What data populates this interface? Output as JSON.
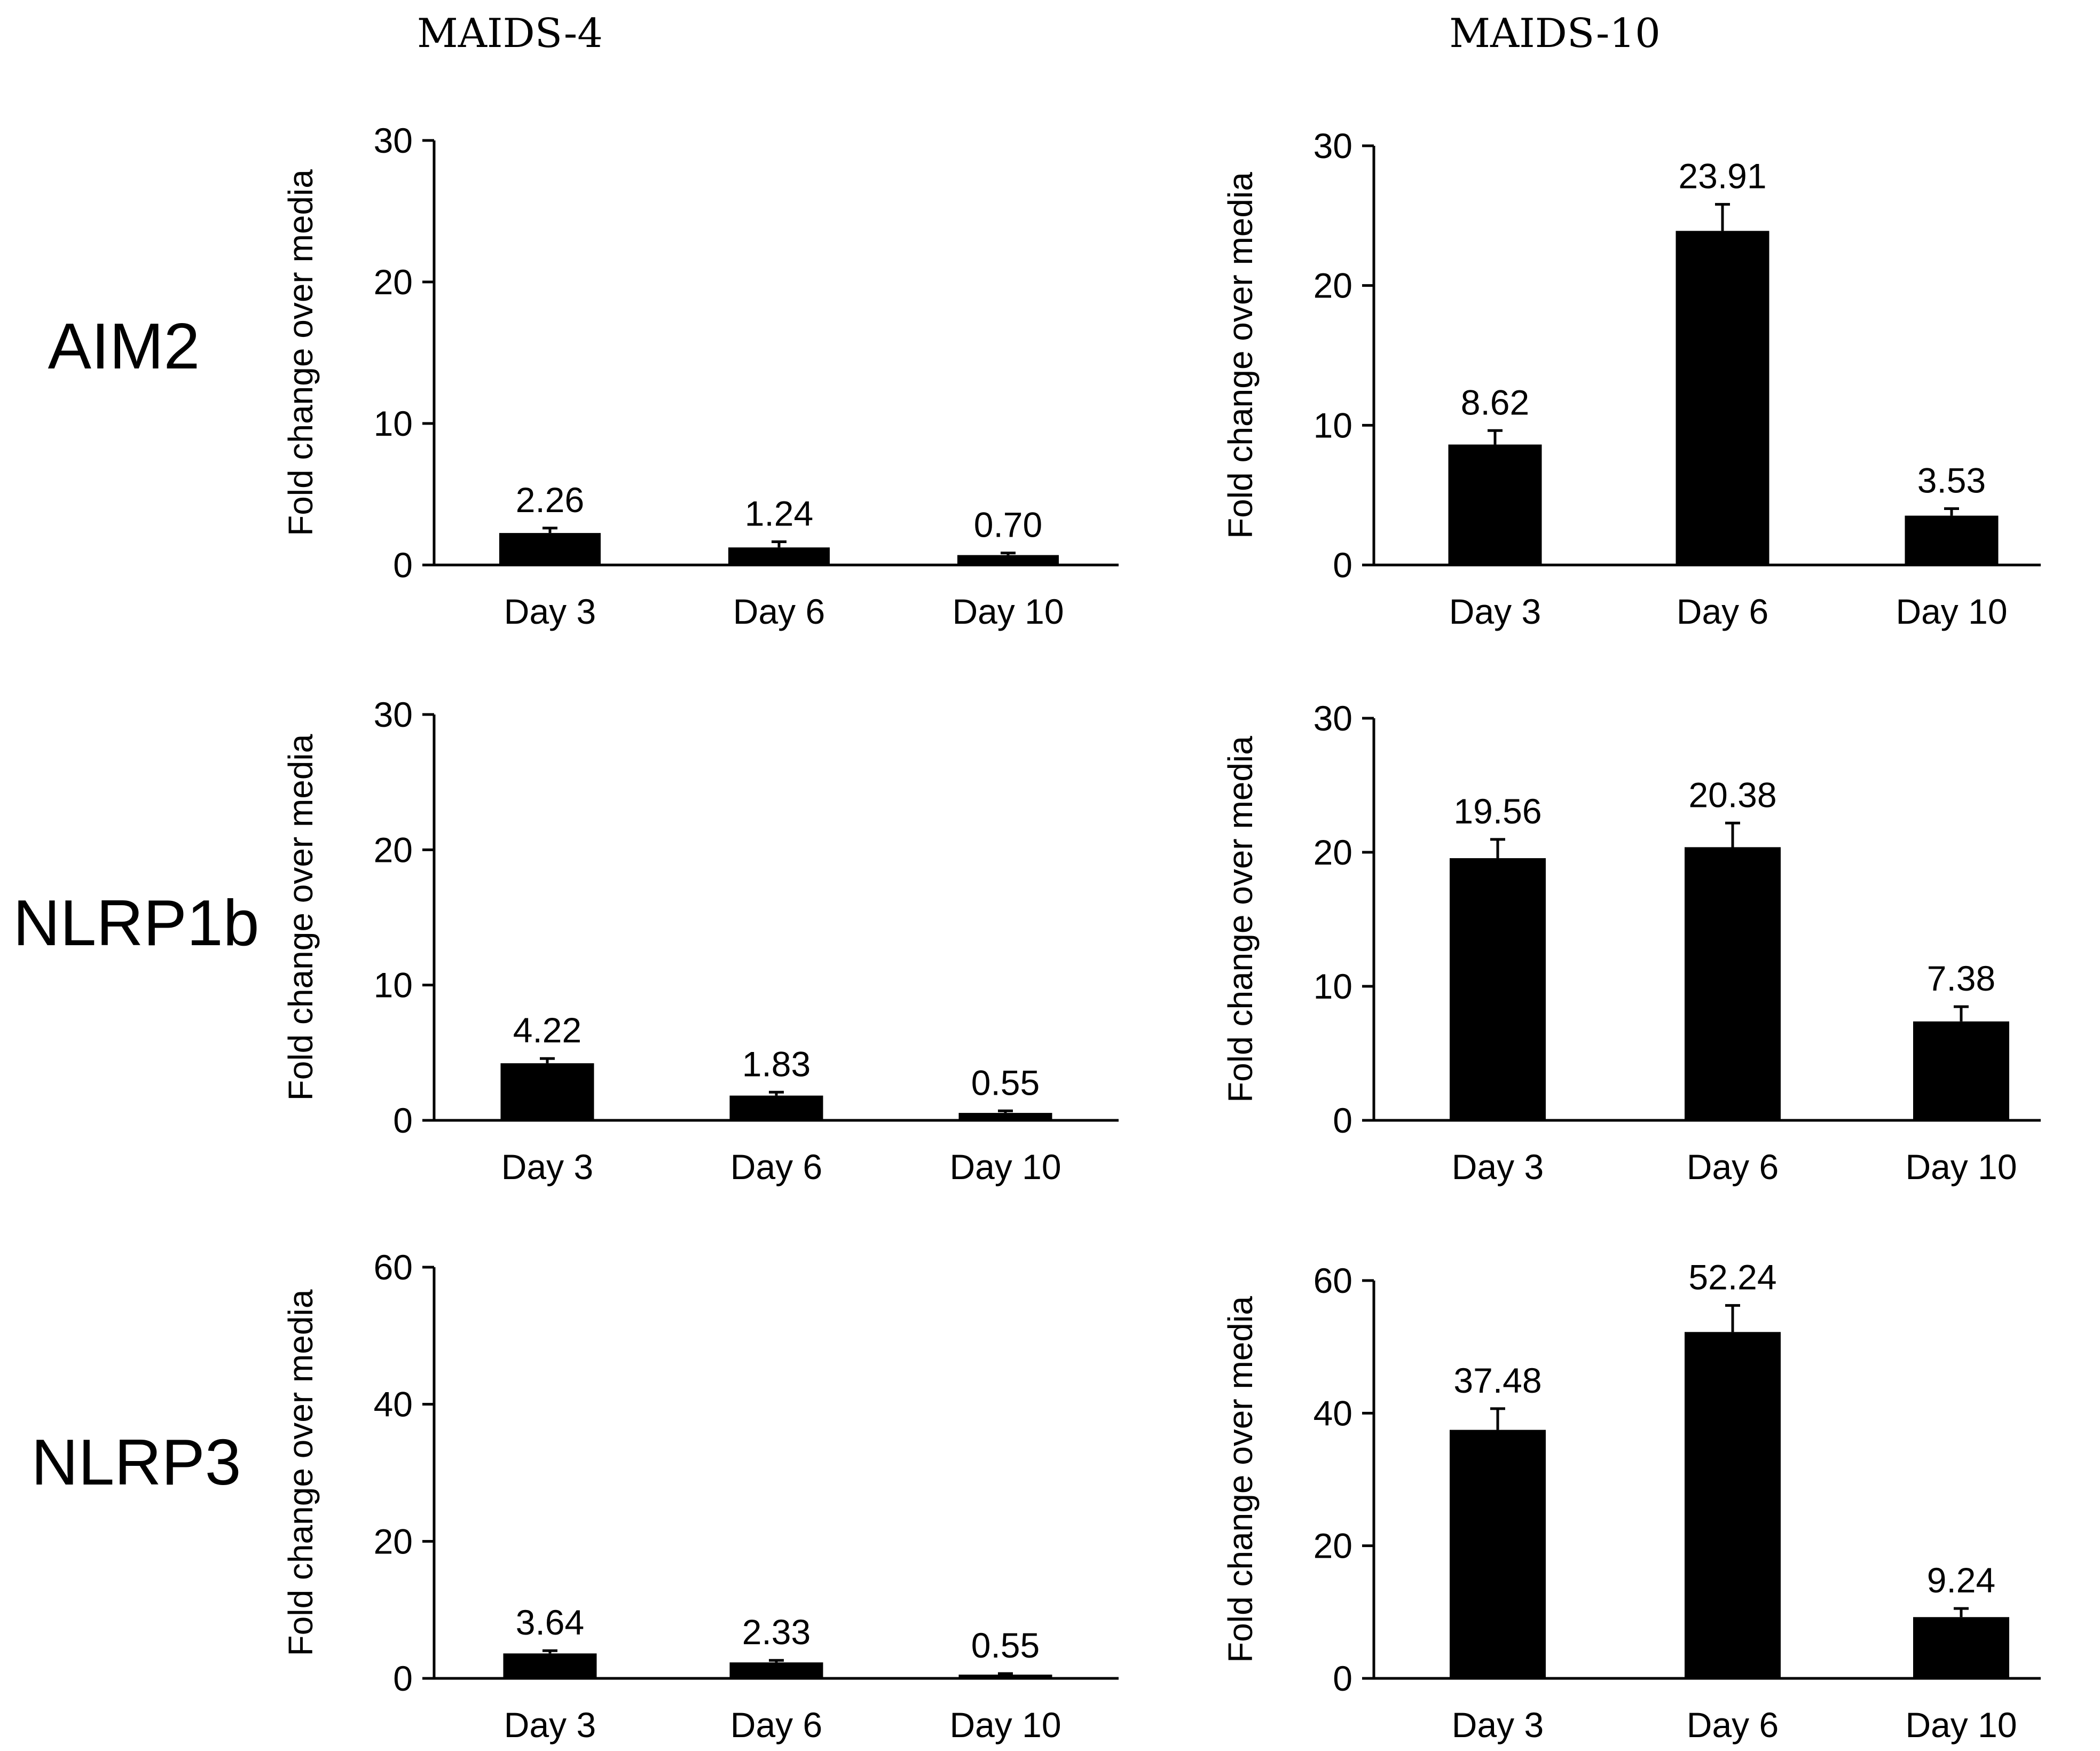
{
  "column_titles": [
    "MAIDS-4",
    "MAIDS-10"
  ],
  "row_labels": [
    "AIM2",
    "NLRP1b",
    "NLRP3"
  ],
  "chart_data": [
    {
      "type": "bar",
      "panel": "AIM2 / MAIDS-4",
      "categories": [
        "Day 3",
        "Day 6",
        "Day 10"
      ],
      "values": [
        2.26,
        1.24,
        0.7
      ],
      "value_labels": [
        "2.26",
        "1.24",
        "0.70"
      ],
      "errors": [
        0.35,
        0.4,
        0.15
      ],
      "ylabel": "Fold change over media",
      "ylim": [
        0,
        30
      ],
      "yticks": [
        0,
        10,
        20,
        30
      ]
    },
    {
      "type": "bar",
      "panel": "AIM2 / MAIDS-10",
      "categories": [
        "Day 3",
        "Day 6",
        "Day 10"
      ],
      "values": [
        8.62,
        23.91,
        3.53
      ],
      "value_labels": [
        "8.62",
        "23.91",
        "3.53"
      ],
      "errors": [
        1.0,
        1.9,
        0.5
      ],
      "ylabel": "Fold change over media",
      "ylim": [
        0,
        30
      ],
      "yticks": [
        0,
        10,
        20,
        30
      ]
    },
    {
      "type": "bar",
      "panel": "NLRP1b / MAIDS-4",
      "categories": [
        "Day 3",
        "Day 6",
        "Day 10"
      ],
      "values": [
        4.22,
        1.83,
        0.55
      ],
      "value_labels": [
        "4.22",
        "1.83",
        "0.55"
      ],
      "errors": [
        0.35,
        0.25,
        0.15
      ],
      "ylabel": "Fold change over media",
      "ylim": [
        0,
        30
      ],
      "yticks": [
        0,
        10,
        20,
        30
      ]
    },
    {
      "type": "bar",
      "panel": "NLRP1b / MAIDS-10",
      "categories": [
        "Day 3",
        "Day 6",
        "Day 10"
      ],
      "values": [
        19.56,
        20.38,
        7.38
      ],
      "value_labels": [
        "19.56",
        "20.38",
        "7.38"
      ],
      "errors": [
        1.4,
        1.8,
        1.1
      ],
      "ylabel": "Fold change over media",
      "ylim": [
        0,
        30
      ],
      "yticks": [
        0,
        10,
        20,
        30
      ]
    },
    {
      "type": "bar",
      "panel": "NLRP3 / MAIDS-4",
      "categories": [
        "Day 3",
        "Day 6",
        "Day 10"
      ],
      "values": [
        3.64,
        2.33,
        0.55
      ],
      "value_labels": [
        "3.64",
        "2.33",
        "0.55"
      ],
      "errors": [
        0.4,
        0.3,
        0.15
      ],
      "ylabel": "Fold change over media",
      "ylim": [
        0,
        60
      ],
      "yticks": [
        0,
        20,
        40,
        60
      ]
    },
    {
      "type": "bar",
      "panel": "NLRP3 / MAIDS-10",
      "categories": [
        "Day 3",
        "Day 6",
        "Day 10"
      ],
      "values": [
        37.48,
        52.24,
        9.24
      ],
      "value_labels": [
        "37.48",
        "52.24",
        "9.24"
      ],
      "errors": [
        3.2,
        4.0,
        1.3
      ],
      "ylabel": "Fold change over media",
      "ylim": [
        0,
        60
      ],
      "yticks": [
        0,
        20,
        40,
        60
      ]
    }
  ]
}
